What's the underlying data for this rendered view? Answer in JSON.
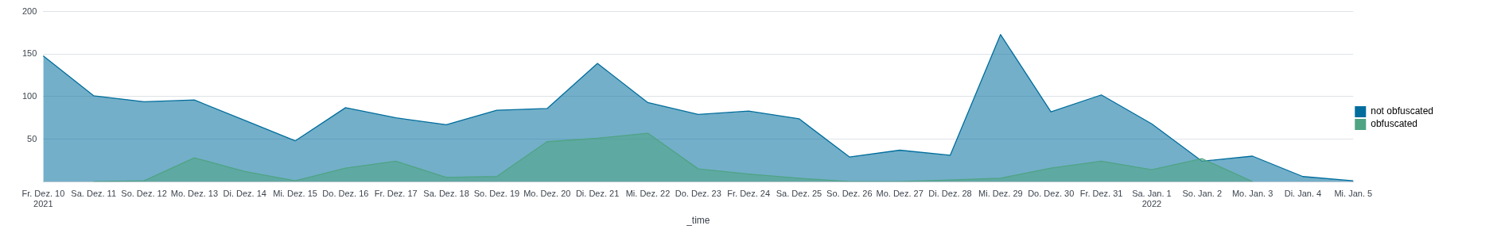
{
  "chart_data": {
    "type": "area",
    "xlabel": "_time",
    "categories": [
      "Fr. Dez. 10\n2021",
      "Sa. Dez. 11",
      "So. Dez. 12",
      "Mo. Dez. 13",
      "Di. Dez. 14",
      "Mi. Dez. 15",
      "Do. Dez. 16",
      "Fr. Dez. 17",
      "Sa. Dez. 18",
      "So. Dez. 19",
      "Mo. Dez. 20",
      "Di. Dez. 21",
      "Mi. Dez. 22",
      "Do. Dez. 23",
      "Fr. Dez. 24",
      "Sa. Dez. 25",
      "So. Dez. 26",
      "Mo. Dez. 27",
      "Di. Dez. 28",
      "Mi. Dez. 29",
      "Do. Dez. 30",
      "Fr. Dez. 31",
      "Sa. Jan. 1\n2022",
      "So. Jan. 2",
      "Mo. Jan. 3",
      "Di. Jan. 4",
      "Mi. Jan. 5"
    ],
    "series": [
      {
        "name": "not obfuscated",
        "color": "#006d9c",
        "values": [
          148,
          101,
          94,
          96,
          72,
          48,
          87,
          75,
          67,
          84,
          86,
          139,
          93,
          79,
          83,
          74,
          29,
          37,
          31,
          173,
          82,
          102,
          68,
          24,
          30,
          6,
          1
        ]
      },
      {
        "name": "obfuscated",
        "color": "#4fa484",
        "values": [
          null,
          0,
          1,
          28,
          12,
          1,
          16,
          24,
          5,
          6,
          47,
          51,
          57,
          15,
          9,
          4,
          0,
          0,
          2,
          4,
          16,
          24,
          14,
          27,
          0,
          null,
          null
        ]
      }
    ],
    "ylim": [
      0,
      200
    ],
    "yticks": [
      50,
      100,
      150,
      200
    ],
    "grid": "y",
    "legend": "right",
    "marker": "none",
    "line_style": "solid"
  }
}
